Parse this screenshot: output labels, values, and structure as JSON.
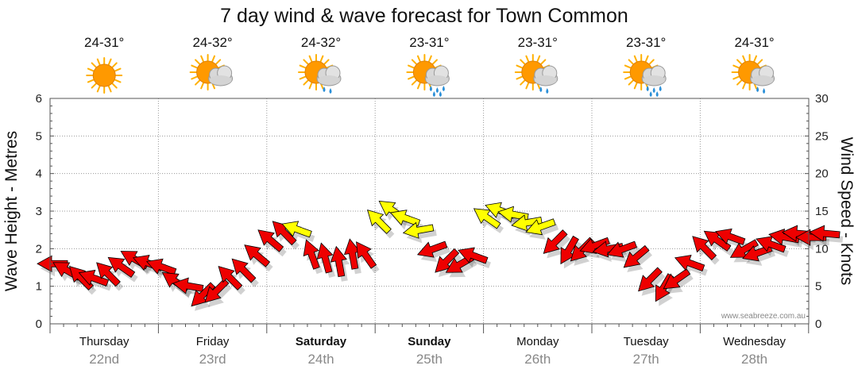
{
  "chart_data": {
    "type": "line",
    "title": "7 day wind & wave forecast for Town Common",
    "ylabel_left": "Wave Height - Metres",
    "ylabel_right": "Wind Speed - Knots",
    "ylim_left": [
      0,
      6
    ],
    "ylim_right": [
      0,
      30
    ],
    "yticks_left": [
      "0",
      "1",
      "2",
      "3",
      "4",
      "5",
      "6"
    ],
    "yticks_right": [
      "0",
      "5",
      "10",
      "15",
      "20",
      "25",
      "30"
    ],
    "grid": true,
    "watermark": "www.seabreeze.com.au",
    "colors": {
      "wind_low": "#ee0000",
      "wind_high": "#ffff00",
      "outline": "#000000",
      "sun": "#ff9900"
    },
    "days": [
      {
        "name": "Thursday",
        "date": "22nd",
        "temp": "24-31°",
        "icon": "sunny-icon",
        "bold": false
      },
      {
        "name": "Friday",
        "date": "23rd",
        "temp": "24-32°",
        "icon": "partly-cloudy-icon",
        "bold": false
      },
      {
        "name": "Saturday",
        "date": "24th",
        "temp": "24-32°",
        "icon": "shower-icon",
        "bold": true
      },
      {
        "name": "Sunday",
        "date": "25th",
        "temp": "23-31°",
        "icon": "rain-icon",
        "bold": true
      },
      {
        "name": "Monday",
        "date": "26th",
        "temp": "23-31°",
        "icon": "shower-icon",
        "bold": false
      },
      {
        "name": "Tuesday",
        "date": "27th",
        "temp": "23-31°",
        "icon": "rain-icon",
        "bold": false
      },
      {
        "name": "Wednesday",
        "date": "28th",
        "temp": "24-31°",
        "icon": "shower-icon",
        "bold": false
      }
    ],
    "series": [
      {
        "name": "Wind Speed",
        "units": "knots",
        "x_unit": "hours from Thursday 00:00",
        "points": [
          {
            "t": 0,
            "speed": 8.0,
            "dir": 180
          },
          {
            "t": 3,
            "speed": 7.0,
            "dir": 210
          },
          {
            "t": 6,
            "speed": 6.0,
            "dir": 225
          },
          {
            "t": 9,
            "speed": 6.0,
            "dir": 200
          },
          {
            "t": 12,
            "speed": 6.5,
            "dir": 225
          },
          {
            "t": 15,
            "speed": 7.5,
            "dir": 215
          },
          {
            "t": 18,
            "speed": 8.5,
            "dir": 210
          },
          {
            "t": 21,
            "speed": 8.0,
            "dir": 200
          },
          {
            "t": 24,
            "speed": 7.5,
            "dir": 200
          },
          {
            "t": 27,
            "speed": 5.5,
            "dir": 215
          },
          {
            "t": 30,
            "speed": 5.0,
            "dir": 190
          },
          {
            "t": 33,
            "speed": 4.0,
            "dir": 135
          },
          {
            "t": 36,
            "speed": 4.5,
            "dir": 135
          },
          {
            "t": 39,
            "speed": 6.0,
            "dir": 225
          },
          {
            "t": 42,
            "speed": 7.0,
            "dir": 225
          },
          {
            "t": 45,
            "speed": 9.0,
            "dir": 220
          },
          {
            "t": 48,
            "speed": 11.0,
            "dir": 220
          },
          {
            "t": 51,
            "speed": 12.0,
            "dir": 225
          },
          {
            "t": 54,
            "speed": 12.5,
            "dir": 200
          },
          {
            "t": 57,
            "speed": 9.0,
            "dir": 250
          },
          {
            "t": 60,
            "speed": 8.5,
            "dir": 255
          },
          {
            "t": 63,
            "speed": 8.0,
            "dir": 260
          },
          {
            "t": 66,
            "speed": 9.0,
            "dir": 260
          },
          {
            "t": 69,
            "speed": 9.0,
            "dir": 235
          },
          {
            "t": 72,
            "speed": 13.5,
            "dir": 225
          },
          {
            "t": 75,
            "speed": 15.0,
            "dir": 215
          },
          {
            "t": 78,
            "speed": 14.0,
            "dir": 200
          },
          {
            "t": 81,
            "speed": 12.5,
            "dir": 170
          },
          {
            "t": 84,
            "speed": 10.0,
            "dir": 160
          },
          {
            "t": 87,
            "speed": 8.5,
            "dir": 135
          },
          {
            "t": 90,
            "speed": 8.0,
            "dir": 150
          },
          {
            "t": 93,
            "speed": 9.0,
            "dir": 200
          },
          {
            "t": 96,
            "speed": 14.0,
            "dir": 215
          },
          {
            "t": 99,
            "speed": 15.0,
            "dir": 200
          },
          {
            "t": 102,
            "speed": 14.5,
            "dir": 190
          },
          {
            "t": 105,
            "speed": 13.5,
            "dir": 170
          },
          {
            "t": 108,
            "speed": 13.0,
            "dir": 160
          },
          {
            "t": 111,
            "speed": 11.0,
            "dir": 135
          },
          {
            "t": 114,
            "speed": 10.0,
            "dir": 120
          },
          {
            "t": 117,
            "speed": 10.0,
            "dir": 135
          },
          {
            "t": 120,
            "speed": 10.5,
            "dir": 160
          },
          {
            "t": 123,
            "speed": 10.0,
            "dir": 170
          },
          {
            "t": 126,
            "speed": 10.0,
            "dir": 160
          },
          {
            "t": 129,
            "speed": 9.0,
            "dir": 140
          },
          {
            "t": 132,
            "speed": 6.0,
            "dir": 135
          },
          {
            "t": 135,
            "speed": 5.0,
            "dir": 120
          },
          {
            "t": 138,
            "speed": 6.0,
            "dir": 145
          },
          {
            "t": 141,
            "speed": 8.0,
            "dir": 200
          },
          {
            "t": 144,
            "speed": 10.0,
            "dir": 225
          },
          {
            "t": 147,
            "speed": 11.0,
            "dir": 215
          },
          {
            "t": 150,
            "speed": 11.5,
            "dir": 200
          },
          {
            "t": 153,
            "speed": 10.0,
            "dir": 150
          },
          {
            "t": 156,
            "speed": 9.5,
            "dir": 160
          },
          {
            "t": 159,
            "speed": 10.5,
            "dir": 200
          },
          {
            "t": 162,
            "speed": 11.5,
            "dir": 190
          },
          {
            "t": 165,
            "speed": 12.0,
            "dir": 185
          },
          {
            "t": 168,
            "speed": 11.5,
            "dir": 180
          },
          {
            "t": 171,
            "speed": 12.0,
            "dir": 185
          }
        ]
      }
    ]
  }
}
